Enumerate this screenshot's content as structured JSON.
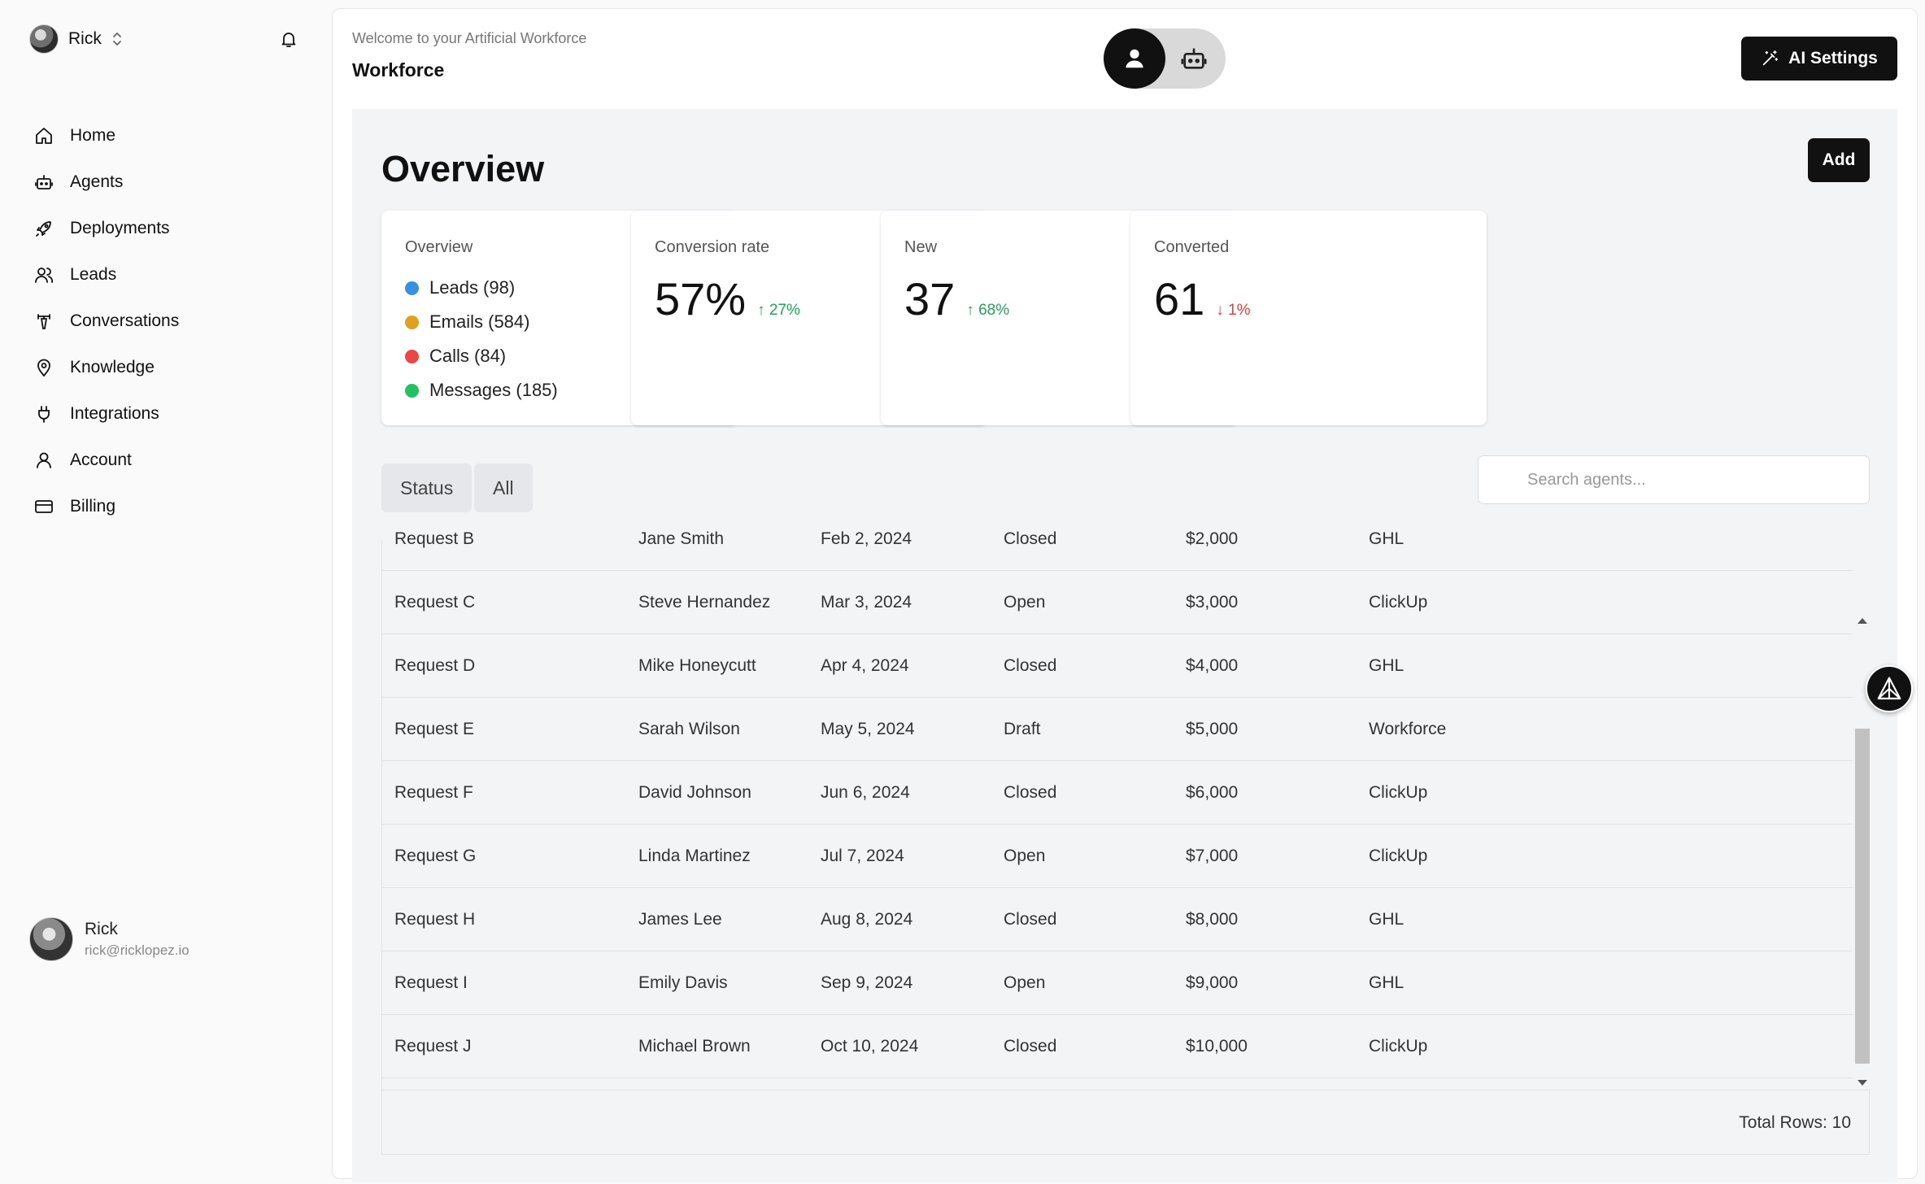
{
  "sidebar": {
    "user_name": "Rick",
    "nav": [
      {
        "label": "Home",
        "icon": "home-icon"
      },
      {
        "label": "Agents",
        "icon": "bot-icon"
      },
      {
        "label": "Deployments",
        "icon": "rocket-icon"
      },
      {
        "label": "Leads",
        "icon": "users-icon"
      },
      {
        "label": "Conversations",
        "icon": "phone-tower-icon"
      },
      {
        "label": "Knowledge",
        "icon": "map-pin-icon"
      },
      {
        "label": "Integrations",
        "icon": "plug-icon"
      },
      {
        "label": "Account",
        "icon": "user-icon"
      },
      {
        "label": "Billing",
        "icon": "credit-card-icon"
      }
    ],
    "profile": {
      "name": "Rick",
      "email": "rick@ricklopez.io"
    }
  },
  "header": {
    "subtitle": "Welcome to your Artificial Workforce",
    "title": "Workforce",
    "ai_settings_label": "AI Settings"
  },
  "overview": {
    "title": "Overview",
    "add_label": "Add",
    "cards": {
      "summary": {
        "title": "Overview",
        "items": [
          {
            "label": "Leads (98)",
            "color": "#3b8fe0"
          },
          {
            "label": "Emails (584)",
            "color": "#e0a021"
          },
          {
            "label": "Calls (84)",
            "color": "#ea4848"
          },
          {
            "label": "Messages (185)",
            "color": "#24c064"
          }
        ]
      },
      "conversion": {
        "title": "Conversion rate",
        "value": "57%",
        "delta": "↑ 27%"
      },
      "new": {
        "title": "New",
        "value": "37",
        "delta": "↑ 68%"
      },
      "converted": {
        "title": "Converted",
        "value": "61",
        "delta": "↓ 1%"
      }
    }
  },
  "filters": {
    "status_label": "Status",
    "all_label": "All",
    "search_placeholder": "Search agents..."
  },
  "table": {
    "rows": [
      [
        "Request B",
        "Jane Smith",
        "Feb 2, 2024",
        "Closed",
        "$2,000",
        "GHL"
      ],
      [
        "Request C",
        "Steve Hernandez",
        "Mar 3, 2024",
        "Open",
        "$3,000",
        "ClickUp"
      ],
      [
        "Request D",
        "Mike Honeycutt",
        "Apr 4, 2024",
        "Closed",
        "$4,000",
        "GHL"
      ],
      [
        "Request E",
        "Sarah Wilson",
        "May 5, 2024",
        "Draft",
        "$5,000",
        "Workforce"
      ],
      [
        "Request F",
        "David Johnson",
        "Jun 6, 2024",
        "Closed",
        "$6,000",
        "ClickUp"
      ],
      [
        "Request G",
        "Linda Martinez",
        "Jul 7, 2024",
        "Open",
        "$7,000",
        "ClickUp"
      ],
      [
        "Request H",
        "James Lee",
        "Aug 8, 2024",
        "Closed",
        "$8,000",
        "GHL"
      ],
      [
        "Request I",
        "Emily Davis",
        "Sep 9, 2024",
        "Open",
        "$9,000",
        "GHL"
      ],
      [
        "Request J",
        "Michael Brown",
        "Oct 10, 2024",
        "Closed",
        "$10,000",
        "ClickUp"
      ]
    ],
    "total_rows": "Total Rows: 10"
  }
}
